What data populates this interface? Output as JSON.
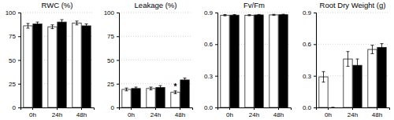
{
  "chart_data": [
    {
      "type": "bar",
      "title": "RWC (%)",
      "categories": [
        "0h",
        "24h",
        "48h"
      ],
      "series": [
        {
          "color": "white",
          "values": [
            86,
            85,
            89
          ],
          "errors": [
            2.5,
            2,
            2
          ]
        },
        {
          "color": "black",
          "values": [
            88,
            90,
            86
          ],
          "errors": [
            2,
            2.5,
            2
          ]
        }
      ],
      "ylim": [
        0,
        100
      ],
      "yticks": [
        0,
        25,
        50,
        75,
        100
      ],
      "grid": true
    },
    {
      "type": "bar",
      "title": "Leakage (%)",
      "categories": [
        "0h",
        "24h",
        "48h"
      ],
      "series": [
        {
          "color": "white",
          "values": [
            19,
            20,
            16
          ],
          "errors": [
            1.5,
            1.5,
            1.5
          ]
        },
        {
          "color": "black",
          "values": [
            20,
            21,
            29
          ],
          "errors": [
            1.5,
            2,
            2
          ]
        }
      ],
      "ylim": [
        0,
        100
      ],
      "yticks": [
        0,
        25,
        50,
        75,
        100
      ],
      "grid": true,
      "annotations": [
        {
          "text": "*",
          "category": "48h"
        }
      ]
    },
    {
      "type": "bar",
      "title": "Fv/Fm",
      "categories": [
        "0h",
        "24h",
        "48h"
      ],
      "series": [
        {
          "color": "white",
          "values": [
            0.875,
            0.875,
            0.878
          ],
          "errors": [
            0.006,
            0.005,
            0.005
          ]
        },
        {
          "color": "black",
          "values": [
            0.876,
            0.878,
            0.88
          ],
          "errors": [
            0.005,
            0.004,
            0.004
          ]
        }
      ],
      "ylim": [
        0,
        0.9
      ],
      "yticks": [
        {
          "value": 0,
          "label": "0.0"
        },
        0.3,
        0.6,
        0.9
      ],
      "grid": true
    },
    {
      "type": "bar",
      "title": "Root Dry Weight (g)",
      "categories": [
        "0h",
        "24h",
        "48h"
      ],
      "series": [
        {
          "color": "white",
          "values": [
            0.29,
            0.46,
            0.55
          ],
          "errors": [
            0.05,
            0.07,
            0.04
          ]
        },
        {
          "color": "black",
          "values": [
            0.0,
            0.4,
            0.57
          ],
          "errors": [
            0.0,
            0.06,
            0.035
          ]
        }
      ],
      "ylim": [
        0,
        0.9
      ],
      "yticks": [
        {
          "value": 0,
          "label": "0.0"
        },
        0.3,
        0.6,
        0.9
      ],
      "grid": true
    }
  ]
}
